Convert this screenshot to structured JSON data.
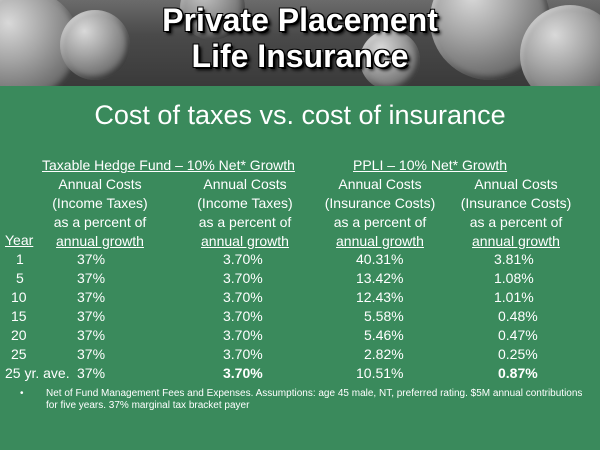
{
  "banner": {
    "title_line1": "Private Placement",
    "title_line2": "Life Insurance"
  },
  "subtitle": "Cost of taxes vs. cost of insurance",
  "groups": {
    "taxable": "Taxable Hedge Fund – 10% Net* Growth",
    "ppli": "PPLI – 10% Net* Growth"
  },
  "columns": [
    {
      "line1": "Annual Costs",
      "line2": "(Income Taxes)",
      "line3": "as a percent of",
      "line4": "annual growth"
    },
    {
      "line1": "Annual Costs",
      "line2": "(Income Taxes)",
      "line3": "as a percent of",
      "line4": "annual growth"
    },
    {
      "line1": "Annual Costs",
      "line2": "(Insurance Costs)",
      "line3": "as a percent of",
      "line4": "annual growth"
    },
    {
      "line1": "Annual Costs",
      "line2": "(Insurance Costs)",
      "line3": "as a percent of",
      "line4": "annual growth"
    }
  ],
  "year_header": "Year",
  "rows": [
    {
      "year": "1",
      "c1": "37%",
      "c2": "3.70%",
      "c3": "40.31%",
      "c4": "3.81%"
    },
    {
      "year": "5",
      "c1": "37%",
      "c2": "3.70%",
      "c3": "13.42%",
      "c4": "1.08%"
    },
    {
      "year": "10",
      "c1": "37%",
      "c2": "3.70%",
      "c3": "12.43%",
      "c4": "1.01%"
    },
    {
      "year": "15",
      "c1": "37%",
      "c2": "3.70%",
      "c3": "5.58%",
      "c4": "0.48%"
    },
    {
      "year": "20",
      "c1": "37%",
      "c2": "3.70%",
      "c3": "5.46%",
      "c4": "0.47%"
    },
    {
      "year": "25",
      "c1": "37%",
      "c2": "3.70%",
      "c3": "2.82%",
      "c4": "0.25%"
    },
    {
      "year": "25 yr. ave.",
      "c1": "37%",
      "c2": "3.70%",
      "c3": "10.51%",
      "c4": "0.87%"
    }
  ],
  "footnote": {
    "bullet": "•",
    "text": "Net of Fund Management Fees and Expenses.  Assumptions:  age 45 male, NT, preferred rating.  $5M annual contributions for five years.  37% marginal tax bracket payer"
  }
}
